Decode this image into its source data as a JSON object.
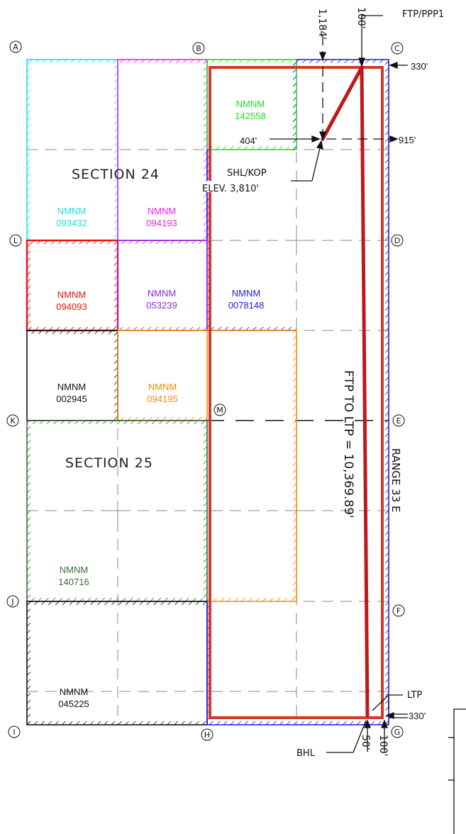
{
  "corners": {
    "A": "A",
    "B": "B",
    "C": "C",
    "D": "D",
    "E": "E",
    "F": "F",
    "G": "G",
    "H": "H",
    "I": "I",
    "J": "J",
    "K": "K",
    "L": "L",
    "M": "M"
  },
  "sections": {
    "s24": "SECTION  24",
    "s25": "SECTION  25"
  },
  "leases": [
    {
      "prefix": "NMNM",
      "number": "142558",
      "color": "#22dd22"
    },
    {
      "prefix": "NMNM",
      "number": "093432",
      "color": "#22dddd"
    },
    {
      "prefix": "NMNM",
      "number": "094193",
      "color": "#ee22ee"
    },
    {
      "prefix": "NMNM",
      "number": "094093",
      "color": "#ee1111"
    },
    {
      "prefix": "NMNM",
      "number": "053239",
      "color": "#8a2be2"
    },
    {
      "prefix": "NMNM",
      "number": "0078148",
      "color": "#1c1cdd"
    },
    {
      "prefix": "NMNM",
      "number": "002945",
      "color": "#111111"
    },
    {
      "prefix": "NMNM",
      "number": "094195",
      "color": "#f08c00"
    },
    {
      "prefix": "NMNM",
      "number": "140716",
      "color": "#3a6b3a"
    },
    {
      "prefix": "NMNM",
      "number": "045225",
      "color": "#111111"
    }
  ],
  "annotations": {
    "ftp": "FTP/PPP1",
    "d1184": "1,184'",
    "d100_top": "100'",
    "d330_top": "330'",
    "d404": "404'",
    "d915": "915'",
    "shl_kop": "SHL/KOP",
    "elev": "ELEV. 3,810'",
    "ftp_to_ltp": "FTP  TO  LTP  =  10,369.89'",
    "range": "RANGE  33  E",
    "ltp": "LTP",
    "bhl": "BHL",
    "d330_bottom": "330'",
    "d50": "50'",
    "d100_bottom": "100'"
  },
  "colors": {
    "wellpath": "#c01818",
    "unit": "#d03a2a",
    "grid": "#777777"
  }
}
